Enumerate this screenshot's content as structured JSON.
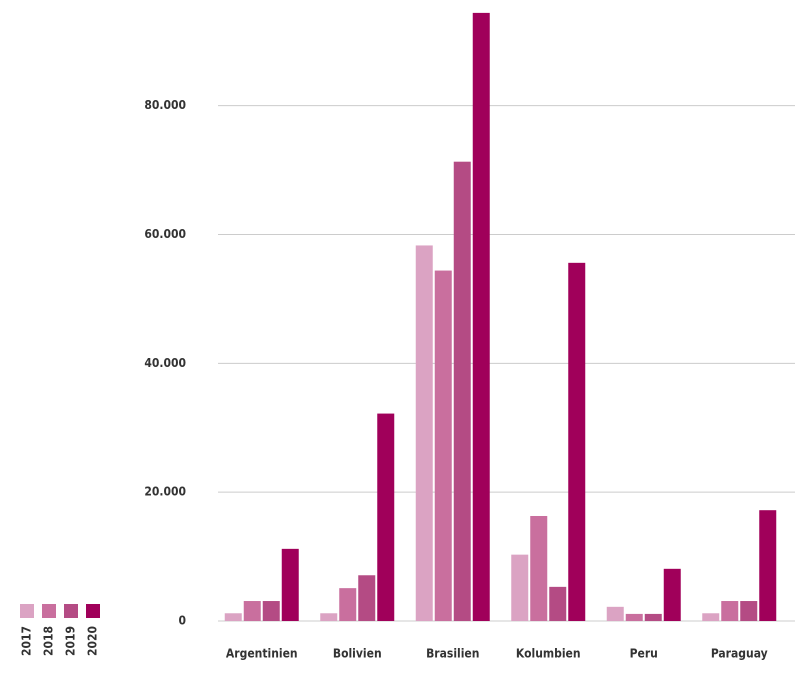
{
  "chart_data": {
    "type": "bar",
    "categories": [
      "Argentinien",
      "Bolivien",
      "Brasilien",
      "Kolumbien",
      "Peru",
      "Paraguay"
    ],
    "series": [
      {
        "name": "2017",
        "color": "#dba3c3",
        "values": [
          1200,
          1200,
          58300,
          10300,
          2200,
          1200
        ]
      },
      {
        "name": "2018",
        "color": "#c96f9e",
        "values": [
          3100,
          5100,
          54400,
          16300,
          1100,
          3100
        ]
      },
      {
        "name": "2019",
        "color": "#b44b84",
        "values": [
          3100,
          7100,
          71300,
          5300,
          1100,
          3100
        ]
      },
      {
        "name": "2020",
        "color": "#a0005a",
        "values": [
          11200,
          32200,
          94400,
          55600,
          8100,
          17200
        ]
      }
    ],
    "ylim": [
      0,
      96400
    ],
    "yticks": [
      {
        "value": 0,
        "label": "0"
      },
      {
        "value": 20000,
        "label": "20.000"
      },
      {
        "value": 40000,
        "label": "40.000"
      },
      {
        "value": 60000,
        "label": "60.000"
      },
      {
        "value": 80000,
        "label": "80.000"
      }
    ],
    "grid": true,
    "legend": "bottom-left"
  }
}
